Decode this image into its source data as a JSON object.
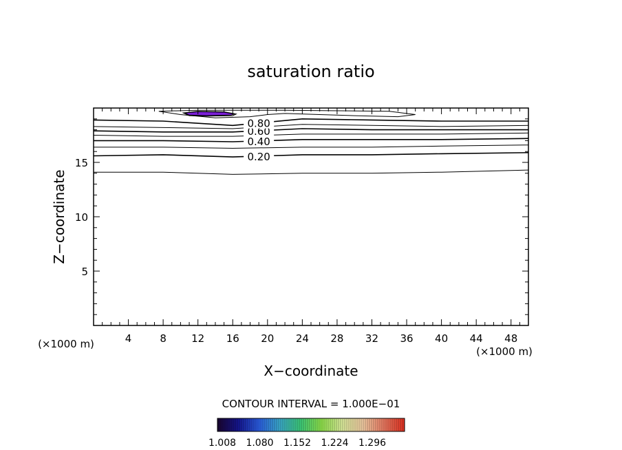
{
  "chart_data": {
    "type": "contour",
    "title": "saturation ratio",
    "xlabel": "X−coordinate",
    "ylabel": "Z−coordinate",
    "x_unit": "(×1000 m)",
    "y_unit": "(×1000 m)",
    "xlim": [
      0,
      50
    ],
    "ylim": [
      0,
      20
    ],
    "x_ticks": [
      4,
      8,
      12,
      16,
      20,
      24,
      28,
      32,
      36,
      40,
      44,
      48
    ],
    "y_ticks": [
      5,
      10,
      15
    ],
    "contour_interval_text": "CONTOUR INTERVAL = 1.000E−01",
    "contours": [
      {
        "level": 0.1,
        "label": "",
        "points": [
          [
            0,
            14.1
          ],
          [
            8,
            14.1
          ],
          [
            16,
            13.9
          ],
          [
            24,
            14.0
          ],
          [
            32,
            14.0
          ],
          [
            40,
            14.1
          ],
          [
            50,
            14.3
          ]
        ]
      },
      {
        "level": 0.2,
        "label": "0.20",
        "points": [
          [
            0,
            15.6
          ],
          [
            8,
            15.7
          ],
          [
            16,
            15.5
          ],
          [
            24,
            15.7
          ],
          [
            32,
            15.7
          ],
          [
            40,
            15.8
          ],
          [
            50,
            15.9
          ]
        ]
      },
      {
        "level": 0.3,
        "label": "",
        "points": [
          [
            0,
            16.4
          ],
          [
            8,
            16.4
          ],
          [
            16,
            16.3
          ],
          [
            24,
            16.4
          ],
          [
            32,
            16.4
          ],
          [
            40,
            16.5
          ],
          [
            50,
            16.6
          ]
        ]
      },
      {
        "level": 0.4,
        "label": "0.40",
        "points": [
          [
            0,
            17.0
          ],
          [
            8,
            17.0
          ],
          [
            16,
            16.9
          ],
          [
            24,
            17.1
          ],
          [
            32,
            17.1
          ],
          [
            40,
            17.1
          ],
          [
            50,
            17.2
          ]
        ]
      },
      {
        "level": 0.5,
        "label": "",
        "points": [
          [
            0,
            17.5
          ],
          [
            8,
            17.4
          ],
          [
            16,
            17.4
          ],
          [
            24,
            17.6
          ],
          [
            32,
            17.6
          ],
          [
            40,
            17.6
          ],
          [
            50,
            17.7
          ]
        ]
      },
      {
        "level": 0.6,
        "label": "0.60",
        "points": [
          [
            0,
            17.9
          ],
          [
            8,
            17.8
          ],
          [
            16,
            17.8
          ],
          [
            24,
            18.1
          ],
          [
            32,
            18.0
          ],
          [
            40,
            18.0
          ],
          [
            50,
            18.0
          ]
        ]
      },
      {
        "level": 0.7,
        "label": "",
        "points": [
          [
            0,
            18.3
          ],
          [
            8,
            18.2
          ],
          [
            16,
            18.1
          ],
          [
            24,
            18.5
          ],
          [
            32,
            18.4
          ],
          [
            40,
            18.3
          ],
          [
            50,
            18.4
          ]
        ]
      },
      {
        "level": 0.8,
        "label": "0.80",
        "points": [
          [
            0,
            18.9
          ],
          [
            8,
            18.8
          ],
          [
            16,
            18.4
          ],
          [
            24,
            19.0
          ],
          [
            32,
            18.9
          ],
          [
            40,
            18.8
          ],
          [
            50,
            18.8
          ]
        ]
      },
      {
        "level": 0.9,
        "label": "",
        "closed": true,
        "points": [
          [
            7.5,
            19.7
          ],
          [
            10,
            19.4
          ],
          [
            14,
            19.1
          ],
          [
            18,
            19.2
          ],
          [
            20,
            19.4
          ],
          [
            22,
            19.5
          ],
          [
            26,
            19.4
          ],
          [
            30,
            19.3
          ],
          [
            35,
            19.2
          ],
          [
            37,
            19.4
          ],
          [
            34,
            19.7
          ],
          [
            22,
            19.8
          ],
          [
            12,
            19.8
          ]
        ]
      },
      {
        "level": 1.0,
        "label": "",
        "closed": true,
        "points": [
          [
            10.3,
            19.55
          ],
          [
            11,
            19.3
          ],
          [
            13,
            19.25
          ],
          [
            16,
            19.3
          ],
          [
            16.4,
            19.45
          ],
          [
            15,
            19.65
          ],
          [
            12,
            19.7
          ]
        ]
      }
    ],
    "filled_regions": [
      {
        "value": 1.008,
        "color": "#7a1fd6",
        "points": [
          [
            10.5,
            19.55
          ],
          [
            11,
            19.35
          ],
          [
            13,
            19.3
          ],
          [
            15.8,
            19.35
          ],
          [
            16.2,
            19.45
          ],
          [
            15,
            19.62
          ],
          [
            12,
            19.67
          ]
        ]
      }
    ],
    "colorbar": {
      "tick_labels": [
        "1.008",
        "1.080",
        "1.152",
        "1.224",
        "1.296"
      ],
      "colors": [
        "#1a0530",
        "#15158e",
        "#2a5de0",
        "#3aa8c8",
        "#3cc878",
        "#8ee04a",
        "#d8e89a",
        "#eec8a0",
        "#e87860",
        "#e03020"
      ]
    }
  }
}
